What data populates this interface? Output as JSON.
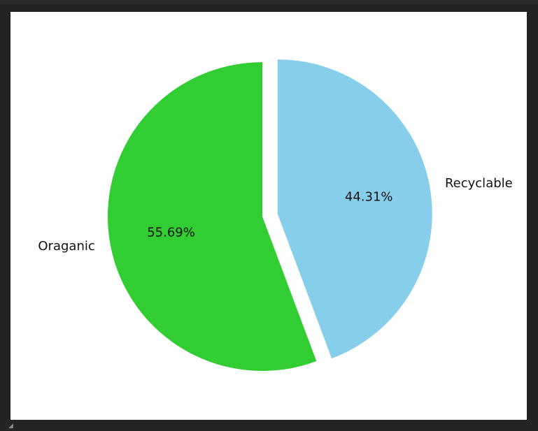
{
  "window": {
    "background": "#222222"
  },
  "chart_data": {
    "type": "pie",
    "title": "",
    "categories": [
      "Oraganic",
      "Recyclable"
    ],
    "values": [
      55.69,
      44.31
    ],
    "percent_labels": [
      "55.69%",
      "44.31%"
    ],
    "colors": [
      "#32cd32",
      "#87ceeb"
    ],
    "explode": [
      0,
      0.1
    ],
    "start_angle_deg": 90,
    "direction": "counterclockwise",
    "legend": "none"
  }
}
